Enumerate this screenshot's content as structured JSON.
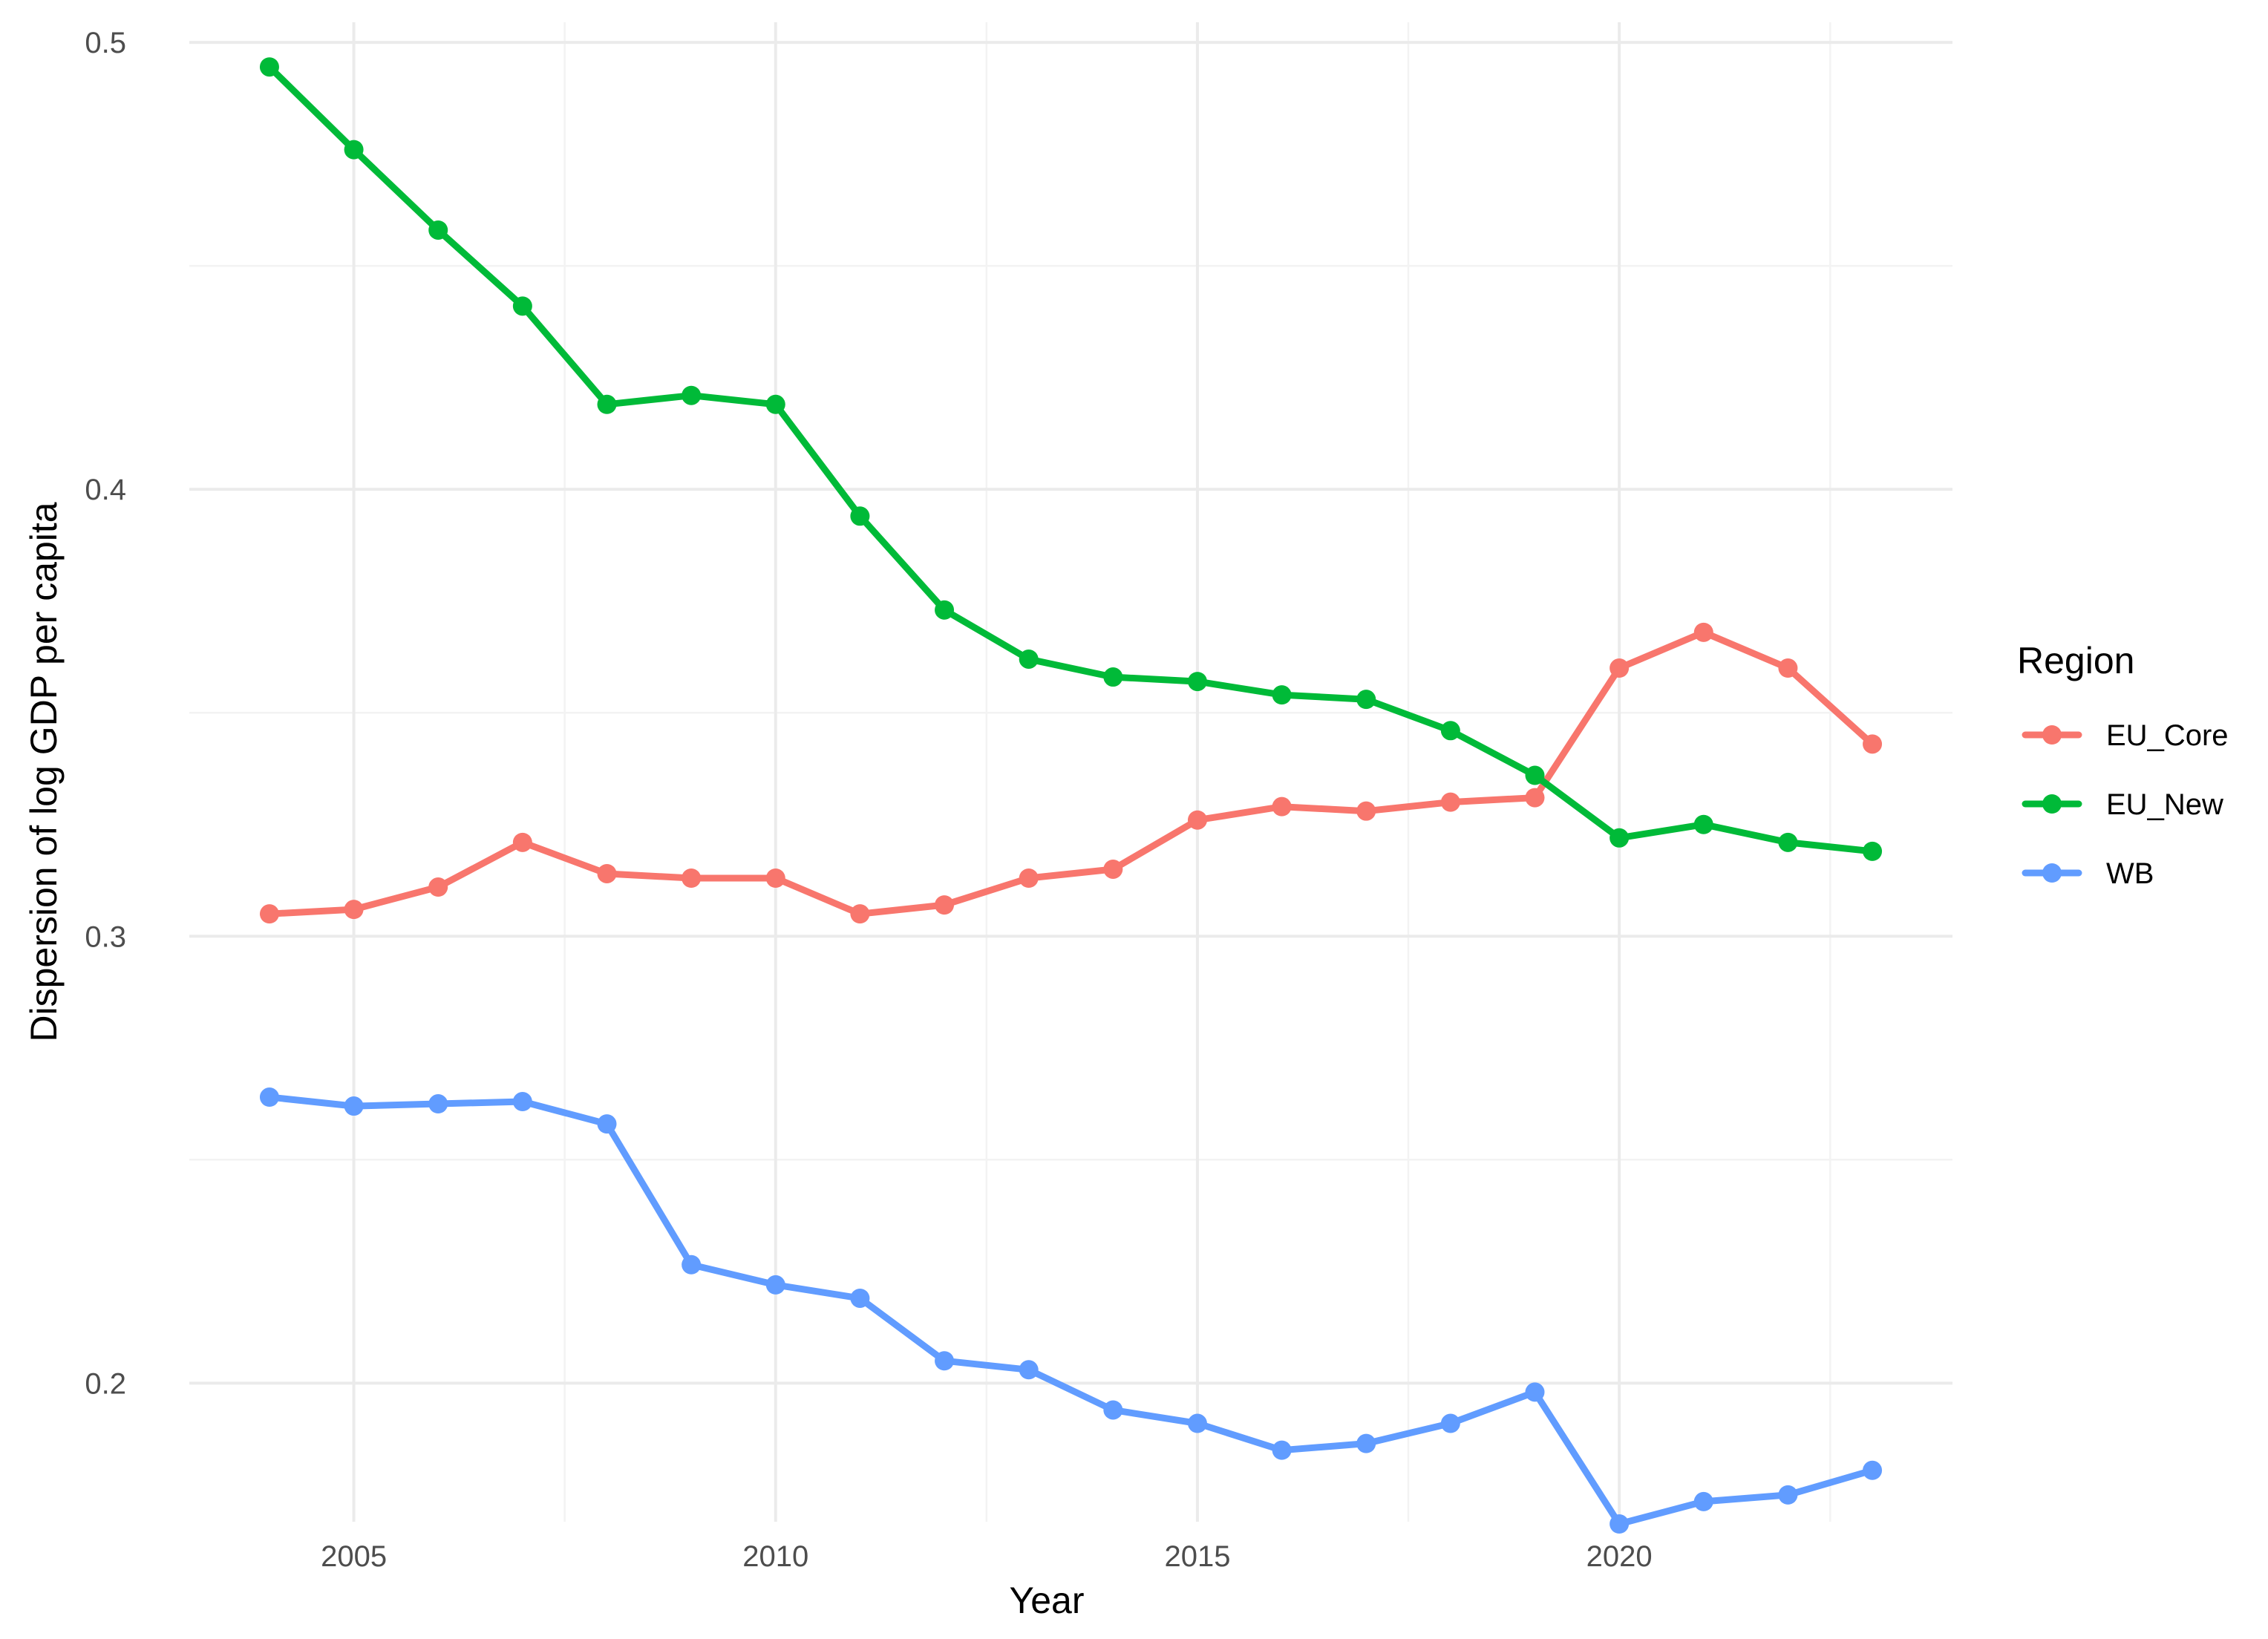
{
  "chart_data": {
    "type": "line",
    "title": "",
    "xlabel": "Year",
    "ylabel": "Dispersion of log GDP per capita",
    "xlim": [
      2003.05,
      2023.95
    ],
    "ylim": [
      0.169,
      0.5045
    ],
    "x_ticks": [
      2005,
      2010,
      2015,
      2020
    ],
    "x_tick_labels": [
      "2005",
      "2010",
      "2015",
      "2020"
    ],
    "y_ticks": [
      0.2,
      0.3,
      0.4,
      0.5
    ],
    "y_tick_labels": [
      "0.2",
      "0.3",
      "0.4",
      "0.5"
    ],
    "grid": true,
    "legend": {
      "title": "Region",
      "position": "right"
    },
    "x": [
      2004,
      2005,
      2006,
      2007,
      2008,
      2009,
      2010,
      2011,
      2012,
      2013,
      2014,
      2015,
      2016,
      2017,
      2018,
      2019,
      2020,
      2021,
      2022,
      2023
    ],
    "series": [
      {
        "name": "EU_Core",
        "color": "#F8766D",
        "values": [
          0.305,
          0.306,
          0.311,
          0.321,
          0.314,
          0.313,
          0.313,
          0.305,
          0.307,
          0.313,
          0.315,
          0.326,
          0.329,
          0.328,
          0.33,
          0.331,
          0.36,
          0.368,
          0.36,
          0.343
        ]
      },
      {
        "name": "EU_New",
        "color": "#00BA38",
        "values": [
          0.4945,
          0.476,
          0.458,
          0.441,
          0.419,
          0.421,
          0.419,
          0.394,
          0.373,
          0.362,
          0.358,
          0.357,
          0.354,
          0.353,
          0.346,
          0.336,
          0.322,
          0.325,
          0.321,
          0.319
        ]
      },
      {
        "name": "WB",
        "color": "#619CFF",
        "values": [
          0.264,
          0.262,
          0.2625,
          0.263,
          0.258,
          0.2265,
          0.222,
          0.219,
          0.205,
          0.203,
          0.194,
          0.191,
          0.185,
          0.1865,
          0.191,
          0.198,
          0.1685,
          0.1735,
          0.175,
          0.1805
        ]
      }
    ]
  }
}
